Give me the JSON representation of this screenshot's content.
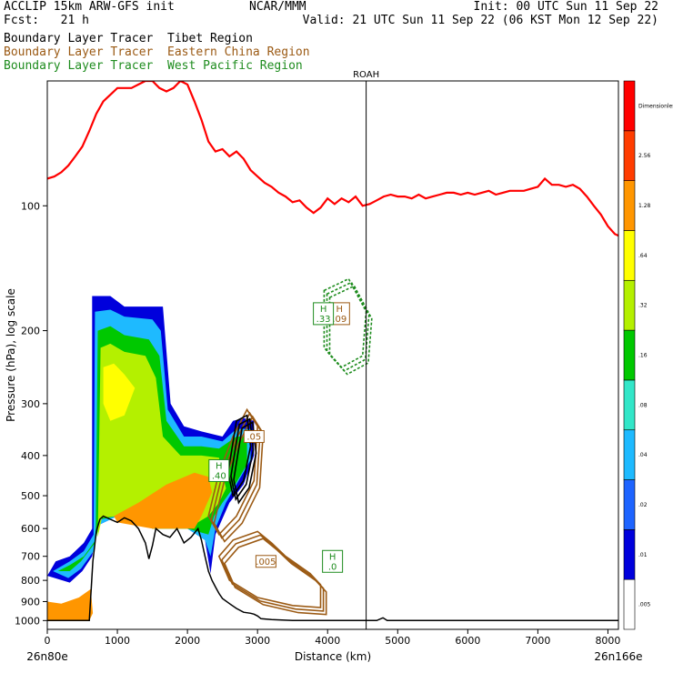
{
  "header": {
    "model": "ACCLIP 15km ARW-GFS init",
    "fcst": "Fcst:   21 h",
    "org": "NCAR/MMM",
    "init": "Init: 00 UTC Sun 11 Sep 22",
    "valid": "Valid: 21 UTC Sun 11 Sep 22 (06 KST Mon 12 Sep 22)"
  },
  "tracers": [
    {
      "label": "Boundary Layer Tracer  Tibet Region",
      "color": "#000000"
    },
    {
      "label": "Boundary Layer Tracer  Eastern China Region",
      "color": "#9b5a14"
    },
    {
      "label": "Boundary Layer Tracer  West Pacific Region",
      "color": "#1e8c1e"
    }
  ],
  "chart_data": {
    "type": "heatmap",
    "xlabel": "Distance (km)",
    "ylabel": "Pressure (hPa), log scale",
    "xlim": [
      0,
      8150
    ],
    "ylim": [
      1050,
      50
    ],
    "yscale": "log",
    "xticks": [
      0,
      1000,
      2000,
      3000,
      4000,
      5000,
      6000,
      7000,
      8000
    ],
    "yticks": [
      100,
      200,
      300,
      400,
      500,
      600,
      700,
      800,
      900,
      1000
    ],
    "endpoints": {
      "left": "26n80e",
      "right": "26n166e"
    },
    "marker": {
      "label": "ROAH",
      "x": 4550
    },
    "colorbar": {
      "levels": [
        ".005",
        ".01",
        ".02",
        ".04",
        ".08",
        ".16",
        ".32",
        ".64",
        "1.28",
        "2.56",
        "Dimensionless"
      ],
      "colors": [
        "#ffffff",
        "#0000dc",
        "#1e64ff",
        "#1ebaff",
        "#32e6c8",
        "#00c800",
        "#b4f000",
        "#ffff00",
        "#ff9600",
        "#ff3c00",
        "#ff0000"
      ]
    },
    "tropopause": [
      [
        0,
        86
      ],
      [
        100,
        85
      ],
      [
        200,
        83
      ],
      [
        300,
        80
      ],
      [
        400,
        76
      ],
      [
        500,
        72
      ],
      [
        600,
        66
      ],
      [
        700,
        60
      ],
      [
        800,
        56
      ],
      [
        900,
        54
      ],
      [
        1000,
        52
      ],
      [
        1100,
        52
      ],
      [
        1200,
        52
      ],
      [
        1300,
        51
      ],
      [
        1400,
        50
      ],
      [
        1500,
        50
      ],
      [
        1600,
        52
      ],
      [
        1700,
        53
      ],
      [
        1800,
        52
      ],
      [
        1900,
        50
      ],
      [
        2000,
        51
      ],
      [
        2100,
        56
      ],
      [
        2200,
        62
      ],
      [
        2300,
        70
      ],
      [
        2400,
        74
      ],
      [
        2500,
        73
      ],
      [
        2600,
        76
      ],
      [
        2700,
        74
      ],
      [
        2800,
        77
      ],
      [
        2900,
        82
      ],
      [
        3000,
        85
      ],
      [
        3100,
        88
      ],
      [
        3200,
        90
      ],
      [
        3300,
        93
      ],
      [
        3400,
        95
      ],
      [
        3500,
        98
      ],
      [
        3600,
        97
      ],
      [
        3700,
        101
      ],
      [
        3800,
        104
      ],
      [
        3900,
        101
      ],
      [
        4000,
        96
      ],
      [
        4100,
        99
      ],
      [
        4200,
        96
      ],
      [
        4300,
        98
      ],
      [
        4400,
        95
      ],
      [
        4500,
        100
      ],
      [
        4600,
        99
      ],
      [
        4700,
        97
      ],
      [
        4800,
        95
      ],
      [
        4900,
        94
      ],
      [
        5000,
        95
      ],
      [
        5100,
        95
      ],
      [
        5200,
        96
      ],
      [
        5300,
        94
      ],
      [
        5400,
        96
      ],
      [
        5500,
        95
      ],
      [
        5600,
        94
      ],
      [
        5700,
        93
      ],
      [
        5800,
        93
      ],
      [
        5900,
        94
      ],
      [
        6000,
        93
      ],
      [
        6100,
        94
      ],
      [
        6200,
        93
      ],
      [
        6300,
        92
      ],
      [
        6400,
        94
      ],
      [
        6500,
        93
      ],
      [
        6600,
        92
      ],
      [
        6700,
        92
      ],
      [
        6800,
        92
      ],
      [
        6900,
        91
      ],
      [
        7000,
        90
      ],
      [
        7100,
        86
      ],
      [
        7200,
        89
      ],
      [
        7300,
        89
      ],
      [
        7400,
        90
      ],
      [
        7500,
        89
      ],
      [
        7600,
        91
      ],
      [
        7700,
        95
      ],
      [
        7800,
        100
      ],
      [
        7900,
        105
      ],
      [
        8000,
        112
      ],
      [
        8100,
        117
      ],
      [
        8150,
        118
      ]
    ],
    "terrain": [
      [
        0,
        1000
      ],
      [
        600,
        1000
      ],
      [
        650,
        720
      ],
      [
        700,
        610
      ],
      [
        750,
        570
      ],
      [
        800,
        560
      ],
      [
        900,
        570
      ],
      [
        1000,
        580
      ],
      [
        1100,
        565
      ],
      [
        1200,
        575
      ],
      [
        1300,
        600
      ],
      [
        1400,
        650
      ],
      [
        1450,
        710
      ],
      [
        1500,
        660
      ],
      [
        1550,
        600
      ],
      [
        1650,
        620
      ],
      [
        1750,
        630
      ],
      [
        1850,
        600
      ],
      [
        1950,
        650
      ],
      [
        2050,
        630
      ],
      [
        2150,
        600
      ],
      [
        2200,
        640
      ],
      [
        2250,
        700
      ],
      [
        2300,
        760
      ],
      [
        2350,
        800
      ],
      [
        2400,
        830
      ],
      [
        2450,
        860
      ],
      [
        2500,
        885
      ],
      [
        2600,
        910
      ],
      [
        2700,
        935
      ],
      [
        2800,
        955
      ],
      [
        2900,
        960
      ],
      [
        2950,
        965
      ],
      [
        3000,
        975
      ],
      [
        3050,
        990
      ],
      [
        3200,
        995
      ],
      [
        3500,
        1000
      ],
      [
        4700,
        1000
      ],
      [
        4790,
        985
      ],
      [
        4850,
        1000
      ],
      [
        8150,
        1000
      ]
    ],
    "shaded_regions": [
      {
        "level": ".005",
        "polygon": [
          [
            0,
            780
          ],
          [
            320,
            810
          ],
          [
            500,
            760
          ],
          [
            720,
            590
          ],
          [
            1000,
            560
          ],
          [
            1500,
            600
          ],
          [
            2000,
            600
          ],
          [
            2250,
            640
          ],
          [
            2250,
            890
          ],
          [
            2150,
            700
          ],
          [
            1950,
            660
          ],
          [
            1550,
            620
          ],
          [
            1200,
            600
          ],
          [
            900,
            590
          ],
          [
            700,
            640
          ],
          [
            600,
            760
          ],
          [
            500,
            830
          ],
          [
            300,
            860
          ],
          [
            0,
            880
          ]
        ]
      },
      {
        "level": ".01",
        "polygon": [
          [
            640,
            165
          ],
          [
            900,
            165
          ],
          [
            1100,
            175
          ],
          [
            1500,
            175
          ],
          [
            1650,
            175
          ],
          [
            1760,
            300
          ],
          [
            1950,
            340
          ],
          [
            2200,
            350
          ],
          [
            2500,
            360
          ],
          [
            2650,
            330
          ],
          [
            2800,
            325
          ],
          [
            2950,
            330
          ],
          [
            2950,
            400
          ],
          [
            2800,
            470
          ],
          [
            2600,
            520
          ],
          [
            2400,
            620
          ],
          [
            2330,
            770
          ],
          [
            2250,
            640
          ],
          [
            2000,
            600
          ],
          [
            1500,
            600
          ],
          [
            1000,
            560
          ],
          [
            720,
            590
          ],
          [
            640,
            700
          ],
          [
            500,
            760
          ],
          [
            320,
            810
          ],
          [
            0,
            780
          ],
          [
            120,
            720
          ],
          [
            320,
            700
          ],
          [
            520,
            650
          ],
          [
            640,
            600
          ]
        ]
      },
      {
        "level": ".04",
        "polygon": [
          [
            680,
            180
          ],
          [
            900,
            178
          ],
          [
            1100,
            185
          ],
          [
            1500,
            188
          ],
          [
            1620,
            200
          ],
          [
            1720,
            310
          ],
          [
            1950,
            360
          ],
          [
            2200,
            360
          ],
          [
            2500,
            370
          ],
          [
            2700,
            345
          ],
          [
            2900,
            345
          ],
          [
            2900,
            410
          ],
          [
            2700,
            470
          ],
          [
            2550,
            520
          ],
          [
            2400,
            600
          ],
          [
            2330,
            700
          ],
          [
            2250,
            640
          ],
          [
            2000,
            600
          ],
          [
            1500,
            600
          ],
          [
            1000,
            560
          ],
          [
            720,
            590
          ],
          [
            660,
            680
          ],
          [
            480,
            750
          ],
          [
            300,
            790
          ],
          [
            80,
            760
          ],
          [
            320,
            720
          ],
          [
            520,
            680
          ],
          [
            660,
            620
          ]
        ]
      },
      {
        "level": ".16",
        "polygon": [
          [
            720,
            200
          ],
          [
            900,
            195
          ],
          [
            1100,
            205
          ],
          [
            1450,
            210
          ],
          [
            1600,
            230
          ],
          [
            1700,
            330
          ],
          [
            1950,
            380
          ],
          [
            2200,
            380
          ],
          [
            2450,
            385
          ],
          [
            2700,
            360
          ],
          [
            2850,
            360
          ],
          [
            2850,
            420
          ],
          [
            2650,
            480
          ],
          [
            2500,
            520
          ],
          [
            2380,
            560
          ],
          [
            2300,
            620
          ],
          [
            2000,
            600
          ],
          [
            1500,
            600
          ],
          [
            1000,
            560
          ],
          [
            760,
            570
          ],
          [
            680,
            650
          ],
          [
            480,
            720
          ],
          [
            320,
            760
          ],
          [
            150,
            760
          ],
          [
            320,
            735
          ],
          [
            520,
            700
          ],
          [
            690,
            640
          ]
        ]
      },
      {
        "level": ".32",
        "polygon": [
          [
            760,
            220
          ],
          [
            900,
            215
          ],
          [
            1100,
            225
          ],
          [
            1400,
            230
          ],
          [
            1550,
            260
          ],
          [
            1650,
            360
          ],
          [
            1900,
            400
          ],
          [
            2200,
            400
          ],
          [
            2450,
            405
          ],
          [
            2550,
            480
          ],
          [
            2450,
            520
          ],
          [
            2300,
            560
          ],
          [
            2000,
            600
          ],
          [
            1500,
            600
          ],
          [
            1000,
            560
          ],
          [
            780,
            565
          ],
          [
            720,
            630
          ]
        ]
      },
      {
        "level": ".64",
        "polygon": [
          [
            800,
            245
          ],
          [
            950,
            240
          ],
          [
            1100,
            255
          ],
          [
            1250,
            275
          ],
          [
            1100,
            320
          ],
          [
            900,
            330
          ],
          [
            800,
            300
          ]
        ]
      },
      {
        "level": "1.28",
        "polygon": [
          [
            950,
            560
          ],
          [
            1300,
            520
          ],
          [
            1700,
            470
          ],
          [
            2100,
            440
          ],
          [
            2300,
            450
          ],
          [
            2350,
            490
          ],
          [
            2200,
            560
          ],
          [
            2100,
            600
          ],
          [
            1500,
            600
          ],
          [
            1000,
            580
          ]
        ]
      },
      {
        "level": "1.28",
        "polygon": [
          [
            0,
            900
          ],
          [
            200,
            910
          ],
          [
            450,
            880
          ],
          [
            620,
            840
          ],
          [
            650,
            960
          ],
          [
            600,
            1000
          ],
          [
            0,
            1000
          ]
        ]
      }
    ],
    "contours": [
      {
        "series": "Eastern China Region",
        "label": ".005",
        "x": 3120,
        "p": 720,
        "polygon": [
          [
            2650,
            640
          ],
          [
            3000,
            610
          ],
          [
            3200,
            650
          ],
          [
            3400,
            700
          ],
          [
            3750,
            770
          ],
          [
            3900,
            820
          ],
          [
            3900,
            930
          ],
          [
            3500,
            920
          ],
          [
            3000,
            880
          ],
          [
            2600,
            800
          ],
          [
            2450,
            700
          ]
        ]
      },
      {
        "series": "Eastern China Region",
        "label": ".05",
        "x": 2950,
        "p": 360,
        "polygon": [
          [
            2450,
            440
          ],
          [
            2650,
            360
          ],
          [
            2850,
            310
          ],
          [
            3000,
            340
          ],
          [
            2950,
            460
          ],
          [
            2700,
            560
          ],
          [
            2450,
            620
          ],
          [
            2300,
            560
          ]
        ]
      },
      {
        "series": "Eastern China Region",
        "label": "H .09",
        "x": 4170,
        "p": 182,
        "polygon": []
      },
      {
        "series": "West Pacific Region",
        "label": "H .33",
        "x": 3940,
        "p": 182,
        "polygon": [
          [
            3950,
            160
          ],
          [
            4300,
            150
          ],
          [
            4550,
            180
          ],
          [
            4500,
            230
          ],
          [
            4200,
            245
          ],
          [
            3950,
            220
          ]
        ]
      },
      {
        "series": "West Pacific Region",
        "label": "H .40",
        "x": 2450,
        "p": 435,
        "polygon": []
      },
      {
        "series": "West Pacific Region",
        "label": "H .0",
        "x": 4070,
        "p": 720,
        "polygon": []
      },
      {
        "series": "Tibet Region",
        "label": "",
        "x": 2700,
        "p": 370,
        "polygon": [
          [
            2580,
            440
          ],
          [
            2700,
            330
          ],
          [
            2850,
            320
          ],
          [
            2900,
            380
          ],
          [
            2800,
            460
          ],
          [
            2650,
            500
          ]
        ]
      }
    ]
  }
}
